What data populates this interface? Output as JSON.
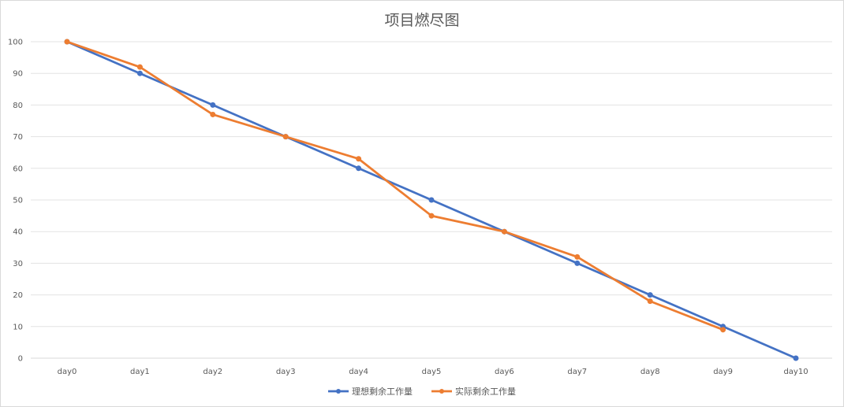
{
  "chart_data": {
    "type": "line",
    "title": "项目燃尽图",
    "categories": [
      "day0",
      "day1",
      "day2",
      "day3",
      "day4",
      "day5",
      "day6",
      "day7",
      "day8",
      "day9",
      "day10"
    ],
    "ylim": [
      0,
      100
    ],
    "yticks": [
      0,
      10,
      20,
      30,
      40,
      50,
      60,
      70,
      80,
      90,
      100
    ],
    "grid": true,
    "legend_position": "bottom",
    "series": [
      {
        "name": "理想剩余工作量",
        "color": "#4472c4",
        "values": [
          100,
          90,
          80,
          70,
          60,
          50,
          40,
          30,
          20,
          10,
          0
        ]
      },
      {
        "name": "实际剩余工作量",
        "color": "#ed7d31",
        "values": [
          100,
          92,
          77,
          70,
          63,
          45,
          40,
          32,
          18,
          9,
          null
        ]
      }
    ]
  }
}
